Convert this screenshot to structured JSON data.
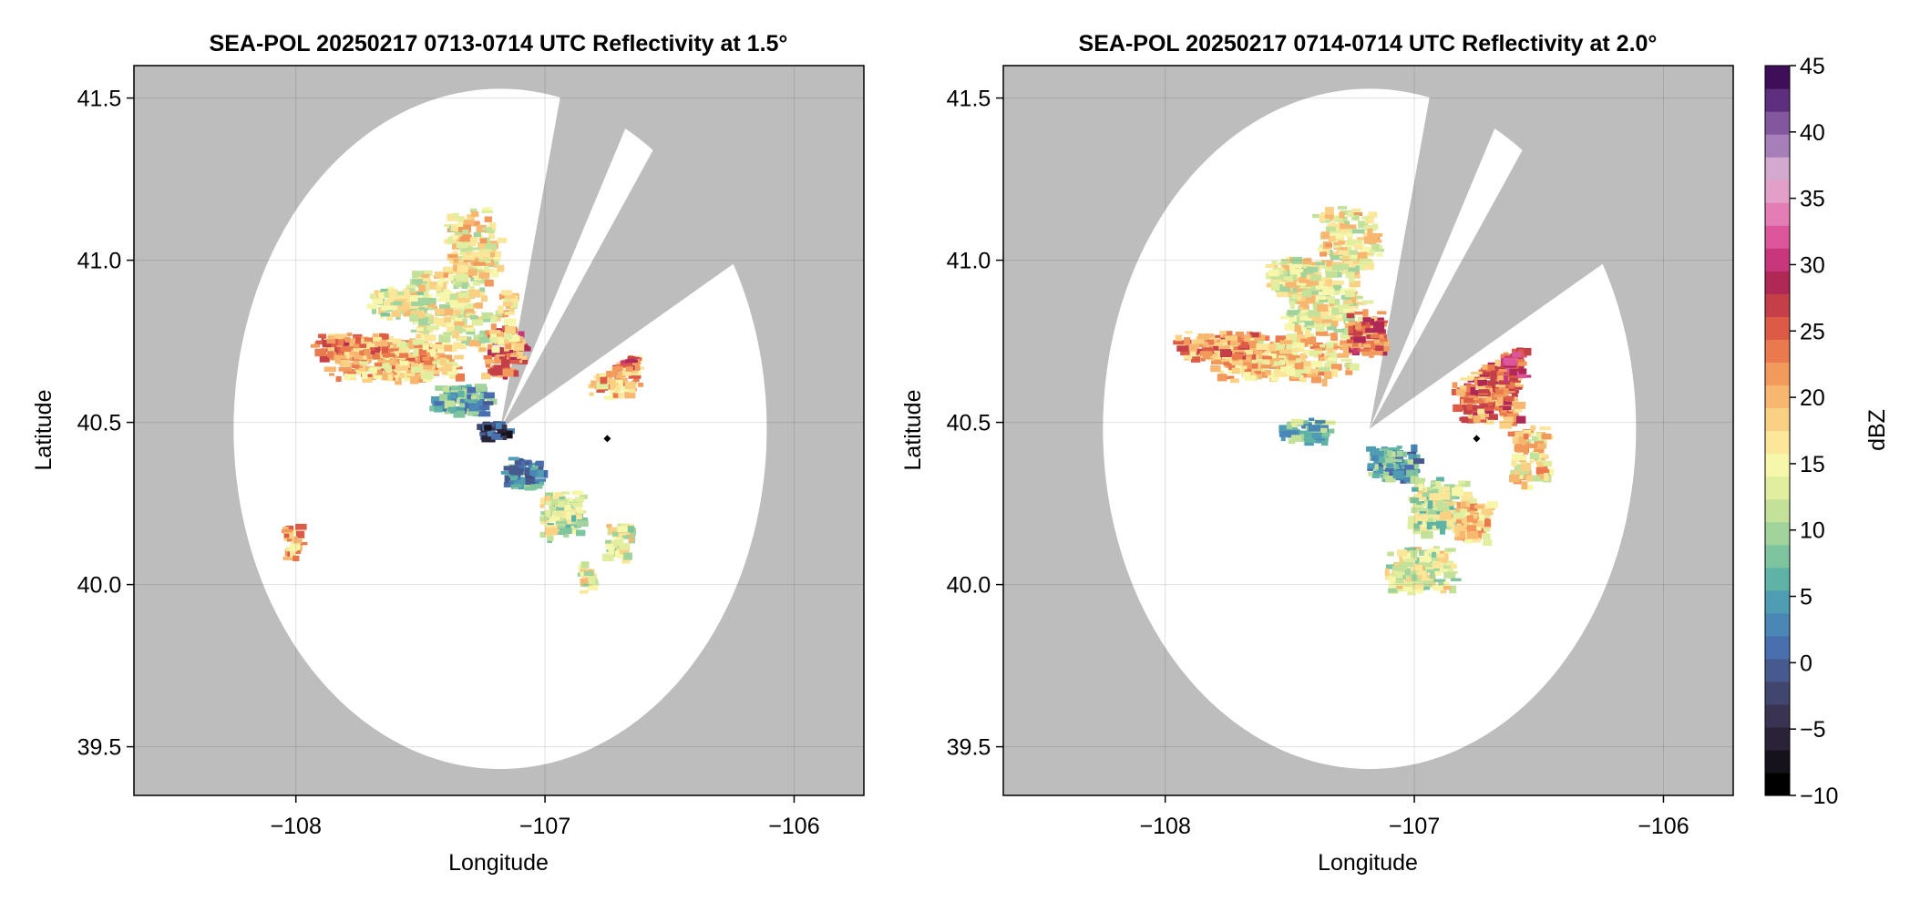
{
  "chart_data": [
    {
      "type": "heatmap",
      "title": "SEA-POL 20250217 0713-0714 UTC Reflectivity at 1.5°",
      "xlabel": "Longitude",
      "ylabel": "Latitude",
      "xlim": [
        -108.65,
        -105.72
      ],
      "ylim": [
        39.35,
        41.6
      ],
      "xticks": [
        -108,
        -107,
        -106
      ],
      "yticks": [
        39.5,
        40.0,
        40.5,
        41.0,
        41.5
      ],
      "grid": true,
      "background_color": "#bdbdbd",
      "radar_site": {
        "lon": -107.18,
        "lat": 40.48
      },
      "radar_range_deg": 1.07,
      "blocked_sectors_deg": [
        [
          14,
          27
        ],
        [
          36,
          60
        ]
      ],
      "marker": {
        "lon": -106.75,
        "lat": 40.45
      }
    },
    {
      "type": "heatmap",
      "title": "SEA-POL 20250217 0714-0714 UTC Reflectivity at 2.0°",
      "xlabel": "Longitude",
      "ylabel": "Latitude",
      "xlim": [
        -108.65,
        -105.72
      ],
      "ylim": [
        39.35,
        41.6
      ],
      "xticks": [
        -108,
        -107,
        -106
      ],
      "yticks": [
        39.5,
        40.0,
        40.5,
        41.0,
        41.5
      ],
      "grid": true,
      "background_color": "#bdbdbd",
      "radar_site": {
        "lon": -107.18,
        "lat": 40.48
      },
      "radar_range_deg": 1.07,
      "blocked_sectors_deg": [
        [
          14,
          27
        ],
        [
          36,
          60
        ]
      ],
      "marker": {
        "lon": -106.75,
        "lat": 40.45
      }
    }
  ],
  "colorbar": {
    "label": "dBZ",
    "min": -10,
    "max": 45,
    "ticks": [
      -10,
      -5,
      0,
      5,
      10,
      15,
      20,
      25,
      30,
      35,
      40,
      45
    ],
    "colors": [
      "#000000",
      "#15121c",
      "#2a2237",
      "#3a3352",
      "#41466e",
      "#475a8f",
      "#4a6fae",
      "#4a86b6",
      "#4f9db2",
      "#5eb2a6",
      "#7ec49e",
      "#a2d39c",
      "#c4e19a",
      "#e2ee9f",
      "#f7f7ab",
      "#fbe69a",
      "#fad184",
      "#f7b770",
      "#f29a5c",
      "#ea7a4d",
      "#dd5a46",
      "#c53f48",
      "#b02856",
      "#c8367c",
      "#dd559b",
      "#e47cb6",
      "#e2a0c9",
      "#d3a9d0",
      "#a67fb9",
      "#82579e",
      "#5e2f7e",
      "#3f0e59"
    ]
  }
}
